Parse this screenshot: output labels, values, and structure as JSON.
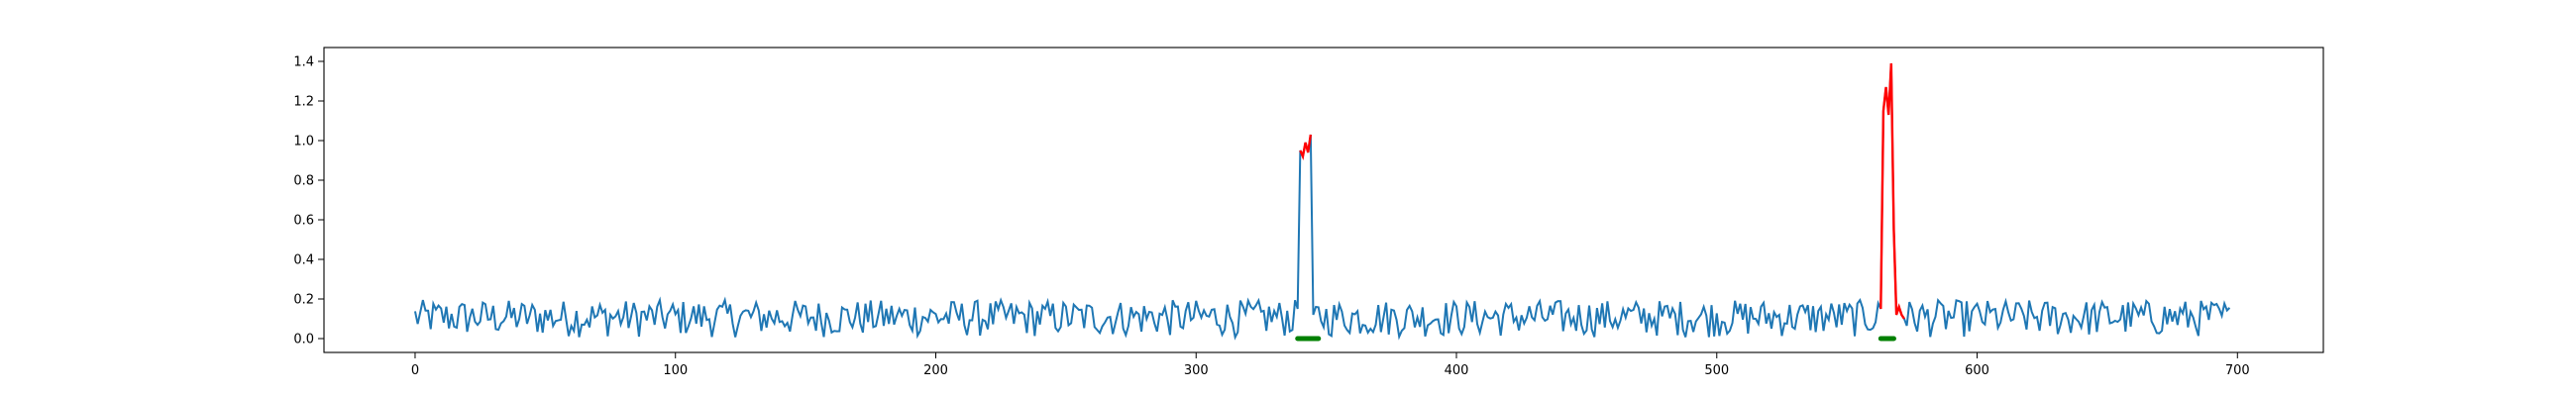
{
  "chart_data": {
    "type": "line",
    "title": "",
    "xlabel": "",
    "ylabel": "",
    "xlim": [
      -35,
      733
    ],
    "ylim": [
      -0.07,
      1.47
    ],
    "xticks": [
      0,
      100,
      200,
      300,
      400,
      500,
      600,
      700
    ],
    "yticks": [
      0.0,
      0.2,
      0.4,
      0.6,
      0.8,
      1.0,
      1.2,
      1.4
    ],
    "grid": false,
    "legend": "none",
    "n_points": 698,
    "series": [
      {
        "color": "#1f77b4",
        "description_of_values": "baseline noise roughly 0.0–0.2 across x = 0–697, with a spike near 0.95–1.03 at x≈340–344",
        "baseline_range": [
          0.0,
          0.2
        ],
        "peaks": [
          {
            "x": [
              339,
              340,
              341,
              342,
              343,
              344,
              345
            ],
            "y": [
              0.15,
              0.95,
              0.92,
              0.99,
              0.94,
              1.03,
              0.12
            ]
          }
        ]
      },
      {
        "color": "#ff0000",
        "role": "highlighted anomaly segments",
        "segments": [
          {
            "x": [
              340,
              341,
              342,
              343,
              344
            ],
            "y": [
              0.95,
              0.92,
              0.99,
              0.94,
              1.03
            ]
          },
          {
            "x": [
              563,
              564,
              565,
              566,
              567,
              568,
              569,
              570,
              571,
              572
            ],
            "y": [
              0.15,
              1.15,
              1.27,
              1.13,
              1.39,
              0.55,
              0.12,
              0.16,
              0.12,
              0.1
            ]
          }
        ]
      },
      {
        "color": "#008000",
        "role": "marker bars at y = 0",
        "segments": [
          {
            "x": [
              339,
              347
            ],
            "y": [
              0.0,
              0.0
            ]
          },
          {
            "x": [
              563,
              568
            ],
            "y": [
              0.0,
              0.0
            ]
          }
        ]
      }
    ]
  },
  "colors": {
    "signal": "#1f77b4",
    "anomaly": "#ff0000",
    "marker": "#008000",
    "axes": "#000000"
  }
}
